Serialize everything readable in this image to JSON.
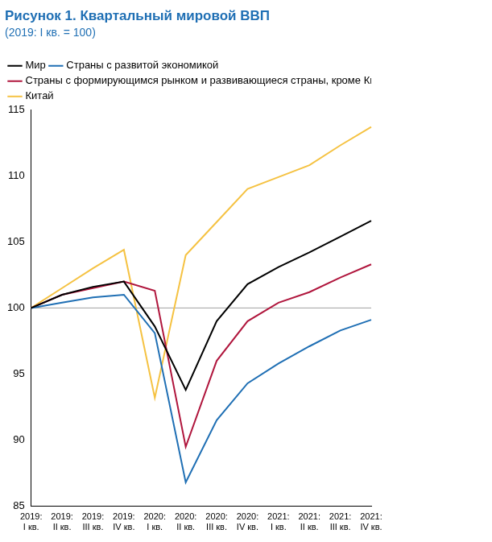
{
  "chart_data": {
    "type": "line",
    "title": "Рисунок 1. Квартальный мировой ВВП",
    "subtitle": "(2019: I кв. = 100)",
    "categories": [
      "2019: I кв.",
      "2019: II кв.",
      "2019: III кв.",
      "2019: IV кв.",
      "2020: I кв.",
      "2020: II кв.",
      "2020: III кв.",
      "2020: IV кв.",
      "2021: I кв.",
      "2021: II кв.",
      "2021: III кв.",
      "2021: IV кв."
    ],
    "series": [
      {
        "name": "Мир",
        "color": "#000000",
        "values": [
          100,
          101.0,
          101.6,
          102.0,
          98.6,
          93.8,
          99.0,
          101.8,
          103.1,
          104.2,
          105.4,
          106.6
        ]
      },
      {
        "name": "Страны с развитой экономикой",
        "color": "#1f6fb4",
        "values": [
          100,
          100.4,
          100.8,
          101.0,
          98.1,
          86.8,
          91.5,
          94.3,
          95.8,
          97.1,
          98.3,
          99.1
        ]
      },
      {
        "name": "Страны с формирующимся рынком и развивающиеся страны, кроме Китая",
        "color": "#b0163d",
        "values": [
          100,
          101.0,
          101.5,
          102.0,
          101.3,
          89.5,
          96.0,
          99.0,
          100.4,
          101.2,
          102.3,
          103.3
        ]
      },
      {
        "name": "Китай",
        "color": "#f5c242",
        "values": [
          100,
          101.5,
          103.0,
          104.4,
          93.2,
          104.0,
          106.5,
          109.0,
          109.9,
          110.8,
          112.3,
          113.7
        ]
      }
    ],
    "baseline": 100,
    "ylim": [
      85,
      115
    ],
    "yticks": [
      85,
      90,
      95,
      100,
      105,
      110,
      115
    ],
    "grid": false,
    "legend": "top"
  }
}
